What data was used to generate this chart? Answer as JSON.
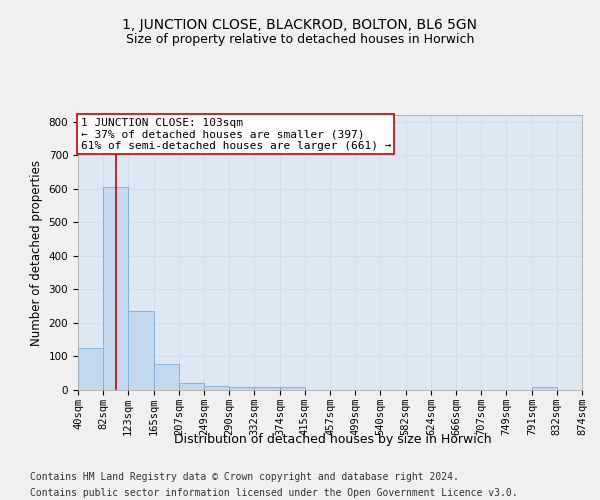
{
  "title": "1, JUNCTION CLOSE, BLACKROD, BOLTON, BL6 5GN",
  "subtitle": "Size of property relative to detached houses in Horwich",
  "xlabel": "Distribution of detached houses by size in Horwich",
  "ylabel": "Number of detached properties",
  "bin_edges": [
    40,
    82,
    123,
    165,
    207,
    249,
    290,
    332,
    374,
    415,
    457,
    499,
    540,
    582,
    624,
    666,
    707,
    749,
    791,
    832,
    874
  ],
  "bar_heights": [
    125,
    605,
    235,
    78,
    22,
    12,
    8,
    8,
    8,
    0,
    0,
    0,
    0,
    0,
    0,
    0,
    0,
    0,
    8,
    0
  ],
  "bar_color": "#c5d9ee",
  "bar_edge_color": "#7aaed4",
  "grid_color": "#d0dce8",
  "bg_color": "#dce9f5",
  "fig_bg_color": "#f0f0f0",
  "vline_x": 103,
  "vline_color": "#cc0000",
  "annotation_text": "1 JUNCTION CLOSE: 103sqm\n← 37% of detached houses are smaller (397)\n61% of semi-detached houses are larger (661) →",
  "annotation_box_color": "#ffffff",
  "annotation_box_edge_color": "#cc0000",
  "ylim": [
    0,
    820
  ],
  "yticks": [
    0,
    100,
    200,
    300,
    400,
    500,
    600,
    700,
    800
  ],
  "footer_line1": "Contains HM Land Registry data © Crown copyright and database right 2024.",
  "footer_line2": "Contains public sector information licensed under the Open Government Licence v3.0.",
  "title_fontsize": 10,
  "subtitle_fontsize": 9,
  "xlabel_fontsize": 9,
  "ylabel_fontsize": 8.5,
  "tick_fontsize": 7.5,
  "annotation_fontsize": 8,
  "footer_fontsize": 7
}
